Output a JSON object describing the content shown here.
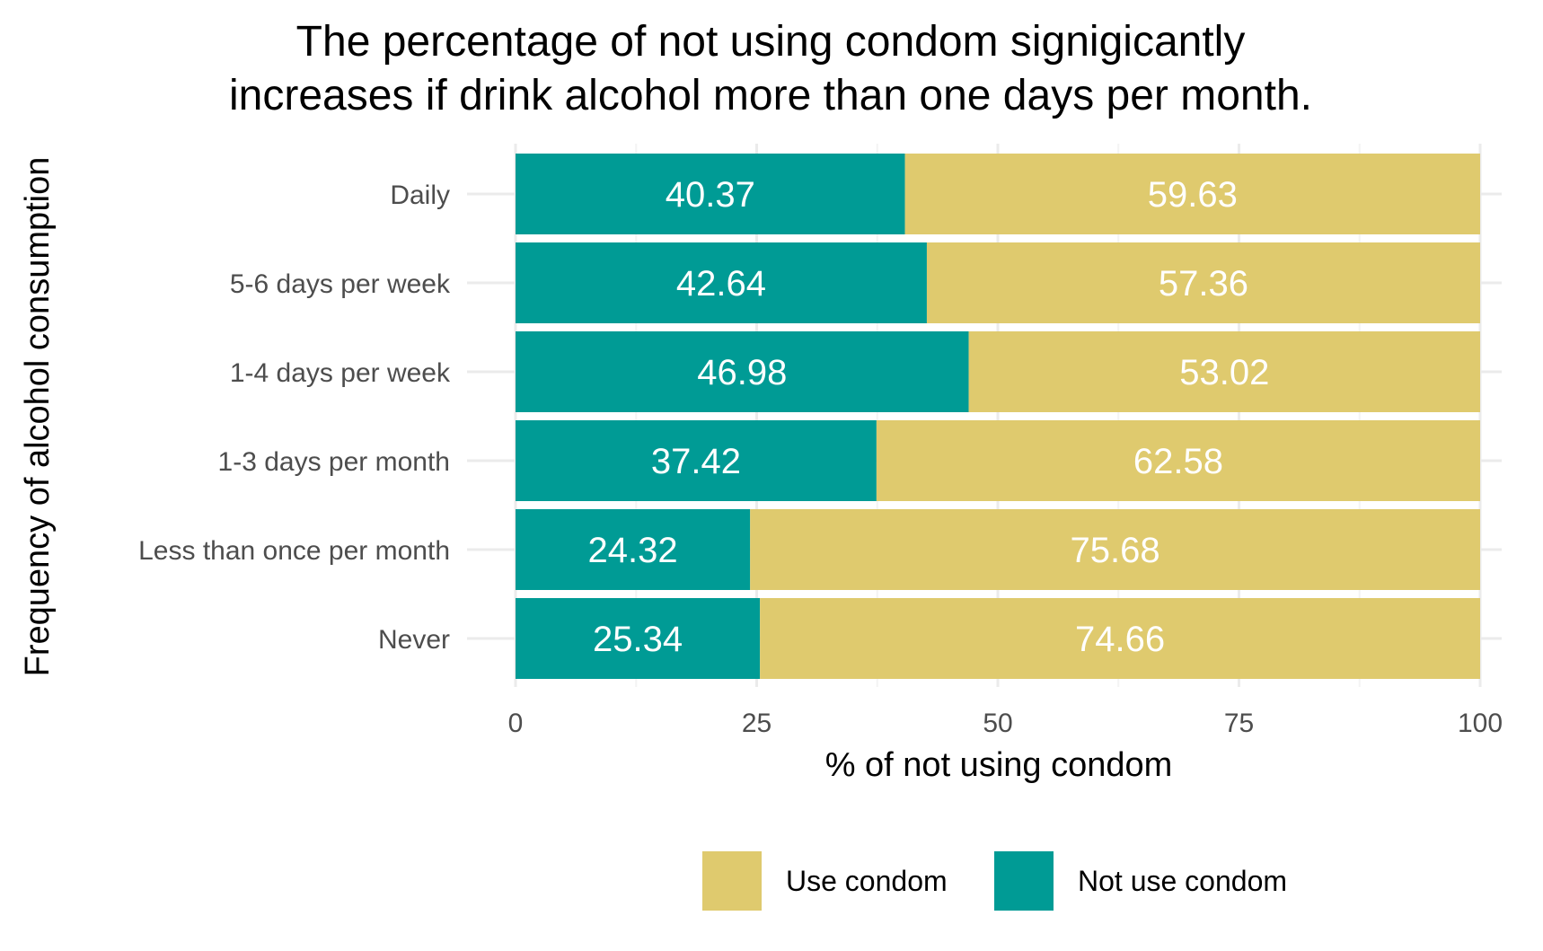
{
  "chart_data": {
    "type": "bar",
    "orientation": "horizontal",
    "stacked": true,
    "title": "The percentage of not using condom signigicantly increases if drink alcohol more than one days per month.",
    "title_lines": [
      "The percentage of not using condom signigicantly",
      "increases if drink alcohol more than one days per month."
    ],
    "xlabel": "% of not using condom",
    "ylabel": "Frequency of alcohol consumption",
    "xlim": [
      0,
      100
    ],
    "xticks": [
      "0",
      "25",
      "50",
      "75",
      "100"
    ],
    "grid": true,
    "legend_position": "bottom",
    "categories": [
      "Daily",
      "5-6 days per week",
      "1-4 days per week",
      "1-3 days per month",
      "Less than once per month",
      "Never"
    ],
    "series": [
      {
        "name": "Not use condom",
        "color": "#009B95",
        "values": [
          40.37,
          42.64,
          46.98,
          37.42,
          24.32,
          25.34
        ],
        "labels": [
          "40.37",
          "42.64",
          "46.98",
          "37.42",
          "24.32",
          "25.34"
        ]
      },
      {
        "name": "Use condom",
        "color": "#DFCA6E",
        "values": [
          59.63,
          57.36,
          53.02,
          62.58,
          75.68,
          74.66
        ],
        "labels": [
          "59.63",
          "57.36",
          "53.02",
          "62.58",
          "75.68",
          "74.66"
        ]
      }
    ],
    "legend": [
      {
        "name": "Use condom",
        "color": "#DFCA6E"
      },
      {
        "name": "Not use condom",
        "color": "#009B95"
      }
    ]
  }
}
